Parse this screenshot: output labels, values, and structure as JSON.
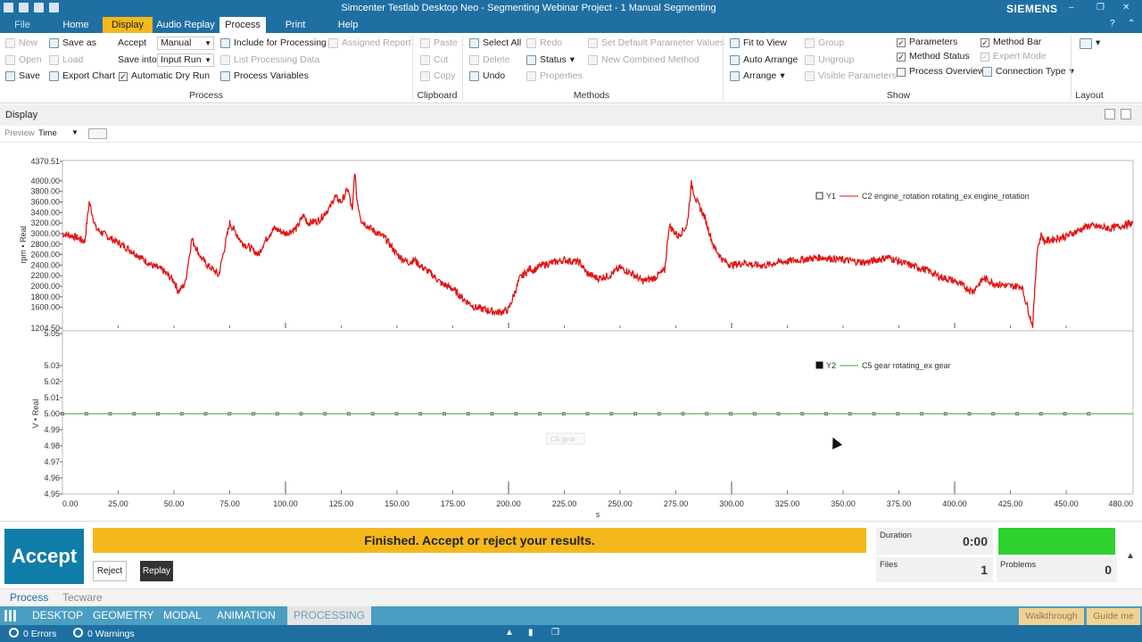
{
  "titlebar": {
    "app_letter": "TL",
    "title": "Simcenter Testlab Desktop Neo - Segmenting Webinar Project - 1 Manual Segmenting",
    "brand": "SIEMENS",
    "minimize": "–",
    "restore": "❐",
    "close": "✕"
  },
  "menu": {
    "file": "File",
    "home": "Home",
    "display": "Display",
    "audio_replay": "Audio Replay",
    "process": "Process",
    "print": "Print",
    "help": "Help",
    "help_icon": "?",
    "collapse_icon": "⌃"
  },
  "ribbon": {
    "new": "New",
    "open": "Open",
    "save": "Save",
    "save_as": "Save as",
    "load": "Load",
    "export_chart": "Export Chart",
    "accept": "Accept",
    "save_into": "Save into",
    "mode_value": "Manual",
    "save_into_value": "Input Run",
    "automatic_dry_run": "Automatic Dry Run",
    "include_for_processing": "Include for Processing",
    "list_processing_data": "List Processing Data",
    "process_variables": "Process Variables",
    "assigned_report": "Assigned Report",
    "process_group": "Process",
    "paste": "Paste",
    "cut": "Cut",
    "copy": "Copy",
    "clipboard_group": "Clipboard",
    "select_all": "Select All",
    "delete": "Delete",
    "undo": "Undo",
    "redo": "Redo",
    "status": "Status",
    "properties": "Properties",
    "set_default_params": "Set Default Parameter Values",
    "new_combined_method": "New Combined Method",
    "methods_group": "Methods",
    "fit_to_view": "Fit to View",
    "auto_arrange": "Auto Arrange",
    "arrange": "Arrange",
    "group": "Group",
    "ungroup": "Ungroup",
    "visible_parameters": "Visible Parameters",
    "parameters": "Parameters",
    "method_status": "Method Status",
    "process_overview": "Process Overview",
    "method_bar": "Method Bar",
    "expert_mode": "Expert Mode",
    "connection_type": "Connection Type",
    "show_group": "Show",
    "layout_group": "Layout"
  },
  "display_bar": {
    "title": "Display",
    "preview": "Preview",
    "domain": "Time"
  },
  "chart_data": [
    {
      "type": "line",
      "ylabel": "rpm • Real",
      "ylim": [
        1204.5,
        4370.51
      ],
      "yticks": [
        "4370.51",
        "4000.00",
        "3800.00",
        "3600.00",
        "3400.00",
        "3200.00",
        "3000.00",
        "2800.00",
        "2600.00",
        "2400.00",
        "2200.00",
        "2000.00",
        "1800.00",
        "1600.00",
        "1204.50"
      ],
      "legend_key": "Y1",
      "series": [
        {
          "name": "C2 engine_rotation rotating_ex engine_rotation",
          "color": "#e01515",
          "x": [
            0,
            5,
            10,
            12,
            15,
            20,
            30,
            40,
            45,
            50,
            52,
            55,
            58,
            62,
            65,
            68,
            70,
            75,
            78,
            80,
            85,
            88,
            90,
            93,
            95,
            100,
            105,
            108,
            110,
            115,
            120,
            122,
            125,
            128,
            130,
            131,
            132,
            134,
            138,
            145,
            150,
            155,
            158,
            160,
            165,
            170,
            175,
            180,
            185,
            190,
            195,
            200,
            205,
            210,
            211,
            215,
            220,
            225,
            232,
            235,
            240,
            245,
            250,
            255,
            260,
            265,
            270,
            272,
            276,
            280,
            282,
            284,
            288,
            292,
            296,
            300,
            306,
            310,
            316,
            320,
            330,
            340,
            350,
            360,
            370,
            380,
            388,
            392,
            400,
            408,
            410,
            413,
            418,
            425,
            430,
            435,
            437,
            439,
            440,
            445,
            450,
            455,
            460,
            470,
            480
          ],
          "y": [
            3000,
            2950,
            2850,
            3600,
            3100,
            2950,
            2700,
            2400,
            2300,
            2100,
            1900,
            2050,
            2900,
            2550,
            2400,
            2300,
            2200,
            3200,
            3000,
            2850,
            2700,
            2600,
            2800,
            3000,
            3100,
            3000,
            3100,
            3350,
            3200,
            3250,
            3500,
            3700,
            3600,
            3850,
            3400,
            4200,
            3650,
            3250,
            3100,
            2900,
            2600,
            2450,
            2500,
            2400,
            2250,
            2050,
            1950,
            1750,
            1600,
            1550,
            1500,
            1550,
            2150,
            2350,
            2300,
            2400,
            2450,
            2500,
            2450,
            2250,
            2150,
            2200,
            2350,
            2250,
            2100,
            2150,
            2300,
            3150,
            2950,
            3150,
            3950,
            3650,
            3300,
            2750,
            2500,
            2400,
            2450,
            2400,
            2400,
            2450,
            2500,
            2550,
            2500,
            2450,
            2550,
            2400,
            2300,
            2200,
            2100,
            1900,
            2000,
            2150,
            2050,
            2000,
            2000,
            1250,
            2700,
            3000,
            2850,
            2900,
            2950,
            3050,
            3150,
            3100,
            3200
          ]
        }
      ]
    },
    {
      "type": "line",
      "xlabel": "s",
      "ylabel": "V • Real",
      "ylim": [
        4.95,
        5.05
      ],
      "yticks": [
        "5.05",
        "5.03",
        "5.02",
        "5.01",
        "5.00",
        "4.99",
        "4.98",
        "4.97",
        "4.96",
        "4.95"
      ],
      "legend_key": "Y2",
      "series": [
        {
          "name": "C5 gear rotating_ex gear",
          "color": "#3aa63a",
          "x": [
            0,
            480
          ],
          "y": [
            5.0,
            5.0
          ]
        }
      ],
      "xlim": [
        0,
        480
      ],
      "xticks": [
        "0.00",
        "25.00",
        "50.00",
        "75.00",
        "100.00",
        "125.00",
        "150.00",
        "175.00",
        "200.00",
        "225.00",
        "250.00",
        "275.00",
        "300.00",
        "325.00",
        "350.00",
        "375.00",
        "400.00",
        "425.00",
        "450.00",
        "480.00"
      ]
    }
  ],
  "ghost_label": "C5 gear",
  "bottom": {
    "accept": "Accept",
    "status_message": "Finished. Accept or reject your results.",
    "reject": "Reject",
    "replay": "Replay",
    "duration_label": "Duration",
    "duration_value": "0:00",
    "files_label": "Files",
    "files_value": "1",
    "problems_label": "Problems",
    "problems_value": "0",
    "status_color": "#2ed12e"
  },
  "tabs": {
    "process": "Process",
    "tecware": "Tecware"
  },
  "workbar": {
    "desktop": "DESKTOP",
    "geometry": "GEOMETRY",
    "modal": "MODAL",
    "animation": "ANIMATION",
    "processing": "PROCESSING",
    "walkthrough": "Walkthrough",
    "guide_me": "Guide me"
  },
  "statusbar": {
    "errors": "0 Errors",
    "warnings": "0 Warnings"
  }
}
